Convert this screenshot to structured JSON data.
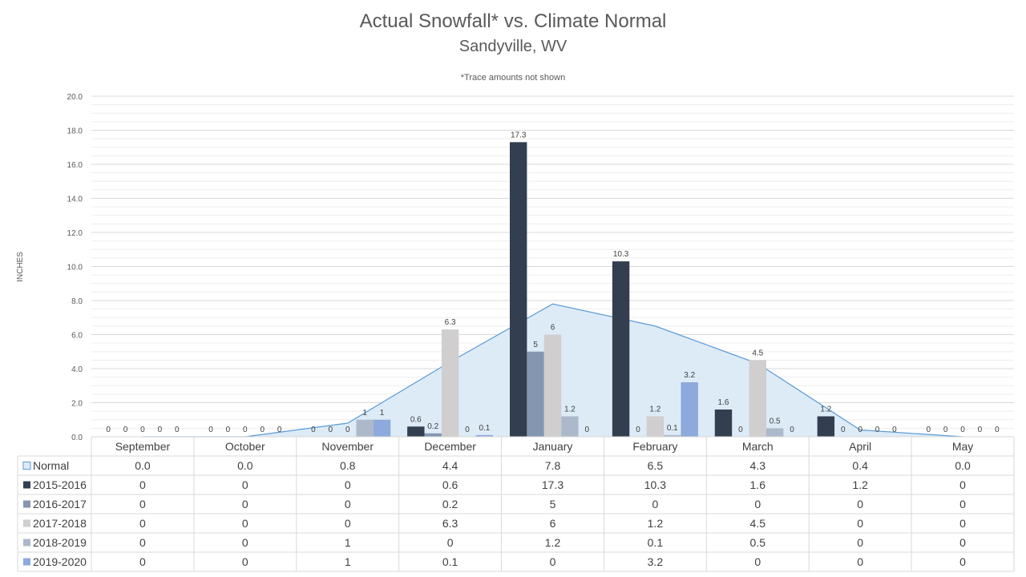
{
  "chart_data": {
    "type": "bar",
    "title": "Actual Snowfall* vs. Climate Normal",
    "subtitle": "Sandyville, WV",
    "note": "*Trace amounts not shown",
    "ylabel": "INCHES",
    "ylim": [
      0,
      20
    ],
    "yticks": [
      "0.0",
      "2.0",
      "4.0",
      "6.0",
      "8.0",
      "10.0",
      "12.0",
      "14.0",
      "16.0",
      "18.0",
      "20.0"
    ],
    "grid": true,
    "legend_placement": "data-table-left",
    "categories": [
      "September",
      "October",
      "November",
      "December",
      "January",
      "February",
      "March",
      "April",
      "May"
    ],
    "normal": {
      "name": "Normal",
      "type": "area",
      "color": "#DDEBF7",
      "line_color": "#5B9BD5",
      "values": [
        0.0,
        0.0,
        0.8,
        4.4,
        7.8,
        6.5,
        4.3,
        0.4,
        0.0
      ],
      "table": [
        "0.0",
        "0.0",
        "0.8",
        "4.4",
        "7.8",
        "6.5",
        "4.3",
        "0.4",
        "0.0"
      ]
    },
    "series": [
      {
        "name": "2015-2016",
        "color": "#333F50",
        "values": [
          0,
          0,
          0,
          0.6,
          17.3,
          10.3,
          1.6,
          1.2,
          0
        ],
        "labels": [
          "0",
          "0",
          "0",
          "0.6",
          "17.3",
          "10.3",
          "1.6",
          "1.2",
          "0"
        ]
      },
      {
        "name": "2016-2017",
        "color": "#8497B0",
        "values": [
          0,
          0,
          0,
          0.2,
          5,
          0,
          0,
          0,
          0
        ],
        "labels": [
          "0",
          "0",
          "0",
          "0.2",
          "5",
          "0",
          "0",
          "0",
          "0"
        ]
      },
      {
        "name": "2017-2018",
        "color": "#D0CECE",
        "values": [
          0,
          0,
          0,
          6.3,
          6,
          1.2,
          4.5,
          0,
          0
        ],
        "labels": [
          "0",
          "0",
          "0",
          "6.3",
          "6",
          "1.2",
          "4.5",
          "0",
          "0"
        ]
      },
      {
        "name": "2018-2019",
        "color": "#ADB9CA",
        "values": [
          0,
          0,
          1,
          0,
          1.2,
          0.1,
          0.5,
          0,
          0
        ],
        "labels": [
          "0",
          "0",
          "1",
          "0",
          "1.2",
          "0.1",
          "0.5",
          "0",
          "0"
        ]
      },
      {
        "name": "2019-2020",
        "color": "#8EA9DB",
        "values": [
          0,
          0,
          1,
          0.1,
          0,
          3.2,
          0,
          0,
          0
        ],
        "labels": [
          "0",
          "0",
          "1",
          "0.1",
          "0",
          "3.2",
          "0",
          "0",
          "0"
        ]
      }
    ]
  }
}
